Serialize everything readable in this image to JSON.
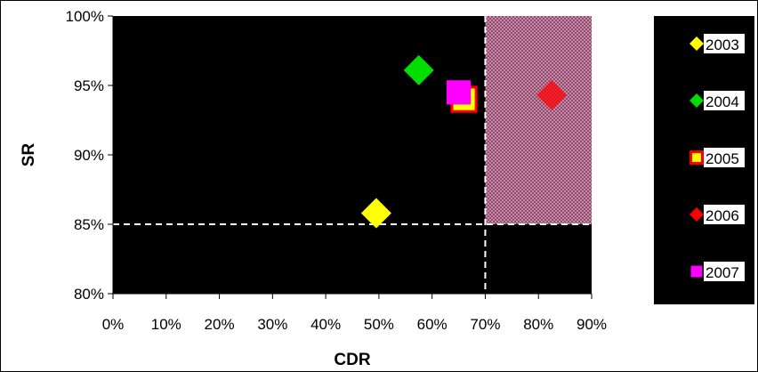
{
  "chart_data": {
    "type": "scatter",
    "xlabel": "CDR",
    "ylabel": "SR",
    "xlim": [
      0,
      0.9
    ],
    "ylim": [
      0.8,
      1.0
    ],
    "x_ticks": [
      "0%",
      "10%",
      "20%",
      "30%",
      "40%",
      "50%",
      "60%",
      "70%",
      "80%",
      "90%"
    ],
    "y_ticks": [
      "80%",
      "85%",
      "90%",
      "95%",
      "100%"
    ],
    "plot_background": "#000000",
    "threshold_x": 0.7,
    "threshold_y": 0.85,
    "target_region": {
      "x_from": 0.7,
      "x_to": 0.9,
      "y_from": 0.85,
      "y_to": 1.0,
      "color": "#b06a8c"
    },
    "legend_position": "right",
    "series": [
      {
        "name": "2003",
        "marker": "diamond",
        "color": "#ffff00",
        "x": 0.495,
        "y": 0.858
      },
      {
        "name": "2004",
        "marker": "diamond",
        "color": "#00dd00",
        "x": 0.575,
        "y": 0.961
      },
      {
        "name": "2005",
        "marker": "square",
        "color": "#ffff00",
        "edge": "#ff0000",
        "x": 0.66,
        "y": 0.94
      },
      {
        "name": "2006",
        "marker": "diamond",
        "color": "#ff0000",
        "x": 0.825,
        "y": 0.943
      },
      {
        "name": "2007",
        "marker": "square",
        "color": "#ff00ff",
        "x": 0.65,
        "y": 0.945
      }
    ]
  }
}
